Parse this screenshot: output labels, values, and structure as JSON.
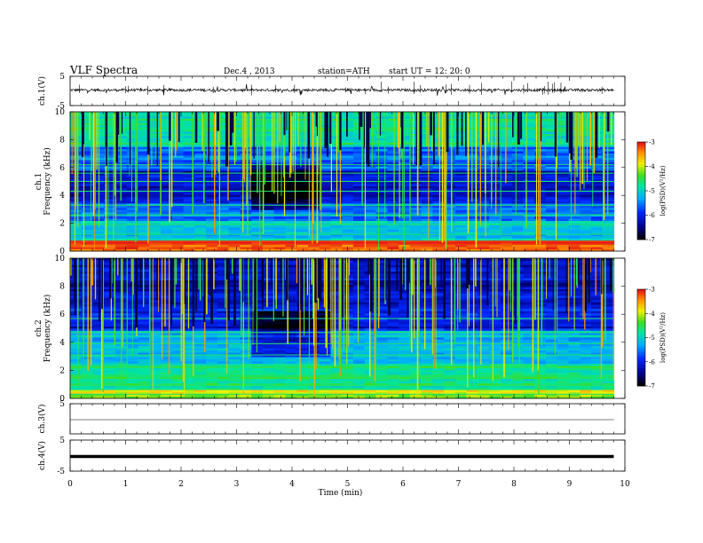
{
  "header": {
    "title": "VLF Spectra",
    "date": "Dec.4  , 2013",
    "station": "station=ATH",
    "start": "start  UT  =    12: 20: 0"
  },
  "chart_data": [
    {
      "type": "line",
      "name": "ch1-waveform",
      "ylabel": "ch.1(V)",
      "ylim": [
        -5,
        5
      ],
      "yticks": [
        "5",
        "-5"
      ],
      "baseline": 0,
      "xlim": [
        0,
        10
      ]
    },
    {
      "type": "heatmap",
      "name": "ch1-spectrogram",
      "ylabel": "ch.1\nFrequency  (kHz)",
      "ylim": [
        0,
        10
      ],
      "yticks": [
        "0",
        "2",
        "4",
        "6",
        "8",
        "10"
      ],
      "xlim": [
        0,
        9.8
      ],
      "colorbar": {
        "label": "log(PSD)(V²/Hz)",
        "range": [
          -7,
          -3
        ],
        "ticks": [
          "-3",
          "-4",
          "-5",
          "-6",
          "-7"
        ]
      },
      "quiet_interval_min": [
        3.3,
        4.55
      ]
    },
    {
      "type": "heatmap",
      "name": "ch2-spectrogram",
      "ylabel": "ch.2\nFrequency  (kHz)",
      "ylim": [
        0,
        10
      ],
      "yticks": [
        "0",
        "2",
        "4",
        "6",
        "8",
        "10"
      ],
      "xlim": [
        0,
        9.8
      ],
      "colorbar": {
        "label": "log(PSD)(V²/Hz)",
        "range": [
          -7,
          -3
        ],
        "ticks": [
          "-3",
          "-4",
          "-5",
          "-6",
          "-7"
        ]
      },
      "quiet_interval_min": [
        3.3,
        4.6
      ]
    },
    {
      "type": "line",
      "name": "ch3-waveform",
      "ylabel": "ch.3(V)",
      "ylim": [
        -5,
        5
      ],
      "yticks": [
        "5"
      ],
      "baseline": 0,
      "xlim": [
        0,
        9.8
      ]
    },
    {
      "type": "line",
      "name": "ch4-waveform",
      "ylabel": "ch.4(V)",
      "ylim": [
        -5,
        5
      ],
      "yticks": [
        "5",
        "-5"
      ],
      "baseline": 0,
      "xlim": [
        0,
        9.8
      ]
    }
  ],
  "xaxis": {
    "label": "Time  (min)",
    "ticks": [
      "0",
      "1",
      "2",
      "3",
      "4",
      "5",
      "6",
      "7",
      "8",
      "9",
      "10"
    ],
    "range": [
      0,
      10
    ]
  }
}
